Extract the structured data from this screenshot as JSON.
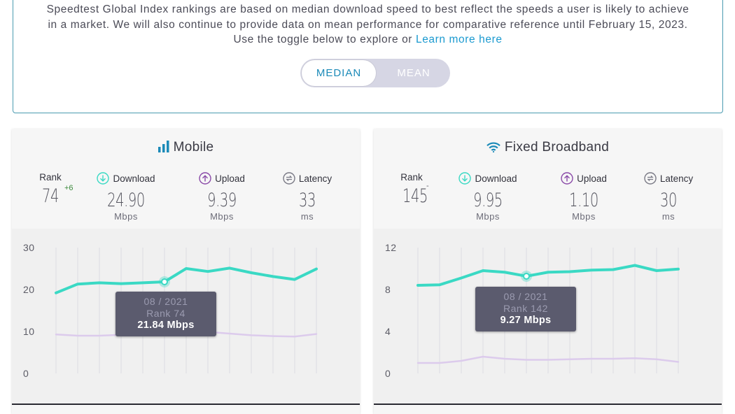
{
  "info": {
    "line1": "Speedtest Global Index rankings are based on median download speed to best reflect the speeds a user is likely to achieve",
    "line2": "in a market. We will also continue to provide data on mean performance for comparative reference until February 15, 2023.",
    "line3_prefix": "Use the toggle below to explore or ",
    "learn_more": "Learn more here"
  },
  "toggle": {
    "median": "MEDIAN",
    "mean": "MEAN",
    "selected": "MEDIAN"
  },
  "colors": {
    "download": "#3ad9c4",
    "upload": "#dccbec",
    "accent": "#1b9ad0"
  },
  "mobile": {
    "title": "Mobile",
    "icon": "signal-bars-icon",
    "rank_label": "Rank",
    "rank": "74",
    "rank_change": "+6",
    "download_label": "Download",
    "download": "24.90",
    "download_unit": "Mbps",
    "upload_label": "Upload",
    "upload": "9.39",
    "upload_unit": "Mbps",
    "latency_label": "Latency",
    "latency": "33",
    "latency_unit": "ms",
    "tooltip": {
      "date": "08 / 2021",
      "rank": "Rank 74",
      "value": "21.84 Mbps"
    }
  },
  "fixed": {
    "title": "Fixed Broadband",
    "icon": "wifi-icon",
    "rank_label": "Rank",
    "rank": "145",
    "rank_change": "-",
    "download_label": "Download",
    "download": "9.95",
    "download_unit": "Mbps",
    "upload_label": "Upload",
    "upload": "1.10",
    "upload_unit": "Mbps",
    "latency_label": "Latency",
    "latency": "30",
    "latency_unit": "ms",
    "tooltip": {
      "date": "08 / 2021",
      "rank": "Rank 142",
      "value": "9.27 Mbps"
    }
  },
  "chart_data": [
    {
      "type": "line",
      "title": "",
      "ylim": [
        0,
        30
      ],
      "yticks": [
        "0",
        "10",
        "20",
        "30"
      ],
      "grid": true,
      "series": [
        {
          "values": [
            19.2,
            21.3,
            21.6,
            21.4,
            21.6,
            21.84,
            25.0,
            24.3,
            25.1,
            24.0,
            23.1,
            22.4,
            24.9
          ]
        },
        {
          "values": [
            9.3,
            9.0,
            9.0,
            9.2,
            9.4,
            9.6,
            9.9,
            9.9,
            9.5,
            9.1,
            8.9,
            8.8,
            9.4
          ]
        }
      ],
      "highlight_index": 5
    },
    {
      "type": "line",
      "title": "",
      "ylim": [
        0,
        12
      ],
      "yticks": [
        "0",
        "4",
        "8",
        "12"
      ],
      "grid": true,
      "series": [
        {
          "values": [
            8.4,
            8.45,
            9.1,
            9.8,
            9.65,
            9.27,
            9.65,
            9.7,
            9.85,
            9.9,
            10.3,
            9.8,
            9.95
          ]
        },
        {
          "values": [
            1.0,
            1.0,
            1.2,
            1.6,
            1.4,
            1.3,
            1.3,
            1.35,
            1.4,
            1.4,
            1.45,
            1.35,
            1.1
          ]
        }
      ],
      "highlight_index": 5
    }
  ]
}
